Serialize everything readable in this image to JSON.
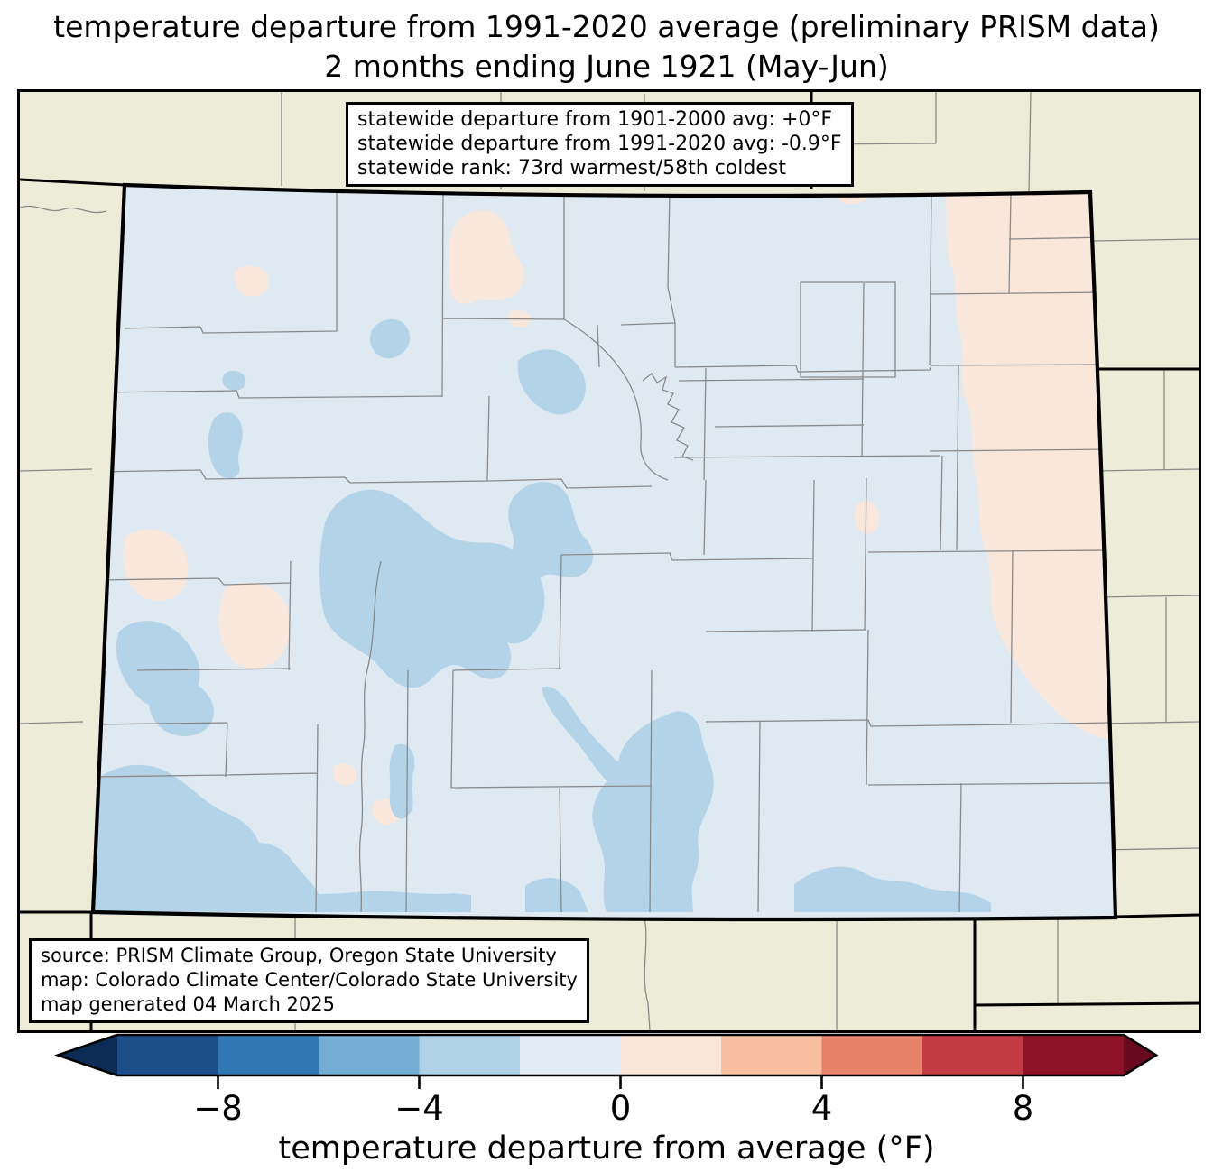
{
  "title": {
    "line1": "temperature departure from 1991-2020 average (preliminary PRISM data)",
    "line2": "2 months ending June 1921 (May-Jun)"
  },
  "stats_box": {
    "line1": "statewide departure from 1901-2000 avg: +0°F",
    "line2": "statewide departure from 1991-2020 avg: -0.9°F",
    "line3": "statewide rank: 73rd warmest/58th coldest"
  },
  "source_box": {
    "line1": "source: PRISM Climate Group, Oregon State University",
    "line2": "map: Colorado Climate Center/Colorado State University",
    "line3": "map generated 04 March 2025"
  },
  "colors": {
    "land": "#edecd9",
    "base": "#dfe9f2",
    "cold": "#b3d4e8",
    "warm": "#f9e7dc",
    "county": "#8a8a8a",
    "stateline": "#000000",
    "boxbg": "#ffffff",
    "boxline": "#000000"
  },
  "chart_data": {
    "type": "heatmap",
    "subtype": "choropleth-climate-map",
    "region": "Colorado",
    "dataset": "preliminary PRISM data",
    "baseline": "1991-2020 average",
    "period": "2 months ending June 1921 (May-Jun)",
    "statewide": {
      "departure_from_1901_2000_avg_f": "+0",
      "departure_from_1991_2020_avg_f": "-0.9",
      "rank": "73rd warmest/58th coldest"
    },
    "map_reading": {
      "most_of_state_bin_f": "-2 to 0",
      "mountain_patches_bin_f": "-4 to -2",
      "eastern_border_strip_bin_f": "0 to +2"
    },
    "colorbar": {
      "label": "temperature departure from average (°F)",
      "orientation": "horizontal",
      "extend": "both",
      "range": [
        -10,
        10
      ],
      "bin_size": 2,
      "ticks": [
        -8,
        -4,
        0,
        4,
        8
      ],
      "tick_labels": [
        "−8",
        "−4",
        "0",
        "4",
        "8"
      ],
      "bin_colors": [
        "#1d4e8a",
        "#3079b6",
        "#72acd2",
        "#aed1e7",
        "#e2eaf3",
        "#f9e6d9",
        "#f8c0a1",
        "#e8836b",
        "#c33c44",
        "#8e1328"
      ],
      "under_color": "#0d2c55",
      "over_color": "#690a20"
    }
  }
}
